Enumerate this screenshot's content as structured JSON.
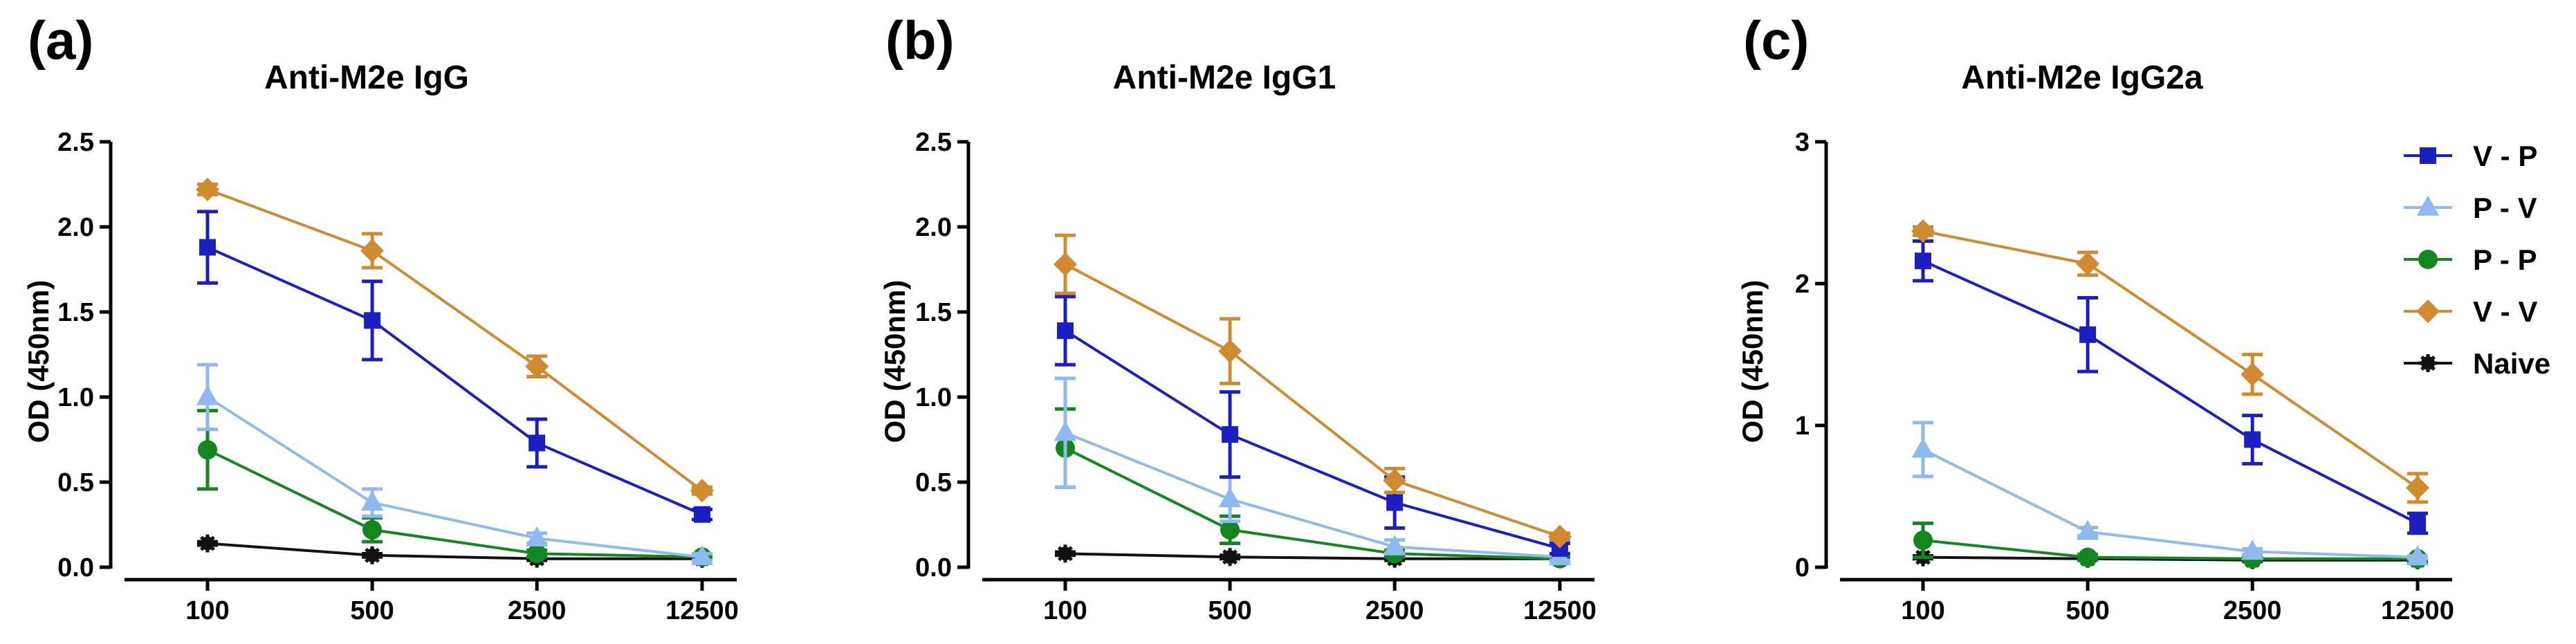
{
  "chart_data": [
    {
      "type": "line",
      "panel": "(a)",
      "title": "Anti-M2e IgG",
      "xlabel": "",
      "ylabel": "OD (450nm)",
      "categories": [
        "100",
        "500",
        "2500",
        "12500"
      ],
      "ylim": [
        0,
        2.5
      ],
      "yticks": [
        0.0,
        0.5,
        1.0,
        1.5,
        2.0,
        2.5
      ],
      "ytick_labels": [
        "0.0",
        "0.5",
        "1.0",
        "1.5",
        "2.0",
        "2.5"
      ],
      "series": [
        {
          "name": "V - P",
          "values": [
            1.88,
            1.45,
            0.73,
            0.31
          ],
          "errors": [
            0.21,
            0.23,
            0.14,
            0.03
          ]
        },
        {
          "name": "P - V",
          "values": [
            1.0,
            0.38,
            0.17,
            0.06
          ],
          "errors": [
            0.19,
            0.08,
            0.03,
            0.02
          ]
        },
        {
          "name": "P - P",
          "values": [
            0.69,
            0.22,
            0.08,
            0.06
          ],
          "errors": [
            0.23,
            0.07,
            0.02,
            0.01
          ]
        },
        {
          "name": "V - V",
          "values": [
            2.22,
            1.86,
            1.18,
            0.45
          ],
          "errors": [
            0.03,
            0.1,
            0.06,
            0.02
          ]
        },
        {
          "name": "Naive",
          "values": [
            0.14,
            0.07,
            0.05,
            0.05
          ],
          "errors": [
            0.01,
            0.01,
            0.01,
            0.01
          ]
        }
      ]
    },
    {
      "type": "line",
      "panel": "(b)",
      "title": "Anti-M2e IgG1",
      "xlabel": "",
      "ylabel": "OD (450nm)",
      "categories": [
        "100",
        "500",
        "2500",
        "12500"
      ],
      "ylim": [
        0,
        2.5
      ],
      "yticks": [
        0.0,
        0.5,
        1.0,
        1.5,
        2.0,
        2.5
      ],
      "ytick_labels": [
        "0.0",
        "0.5",
        "1.0",
        "1.5",
        "2.0",
        "2.5"
      ],
      "series": [
        {
          "name": "V - P",
          "values": [
            1.39,
            0.78,
            0.38,
            0.11
          ],
          "errors": [
            0.2,
            0.25,
            0.15,
            0.03
          ]
        },
        {
          "name": "P - V",
          "values": [
            0.79,
            0.4,
            0.12,
            0.06
          ],
          "errors": [
            0.32,
            0.13,
            0.04,
            0.02
          ]
        },
        {
          "name": "P - P",
          "values": [
            0.7,
            0.22,
            0.08,
            0.05
          ],
          "errors": [
            0.23,
            0.08,
            0.02,
            0.01
          ]
        },
        {
          "name": "V - V",
          "values": [
            1.78,
            1.27,
            0.51,
            0.18
          ],
          "errors": [
            0.17,
            0.19,
            0.07,
            0.02
          ]
        },
        {
          "name": "Naive",
          "values": [
            0.08,
            0.06,
            0.05,
            0.05
          ],
          "errors": [
            0.01,
            0.01,
            0.01,
            0.01
          ]
        }
      ]
    },
    {
      "type": "line",
      "panel": "(c)",
      "title": "Anti-M2e IgG2a",
      "xlabel": "",
      "ylabel": "OD (450nm)",
      "categories": [
        "100",
        "500",
        "2500",
        "12500"
      ],
      "ylim": [
        0,
        3
      ],
      "yticks": [
        0,
        1,
        2,
        3
      ],
      "ytick_labels": [
        "0",
        "1",
        "2",
        "3"
      ],
      "series": [
        {
          "name": "V - P",
          "values": [
            2.16,
            1.64,
            0.9,
            0.31
          ],
          "errors": [
            0.14,
            0.26,
            0.17,
            0.07
          ]
        },
        {
          "name": "P - V",
          "values": [
            0.83,
            0.25,
            0.11,
            0.07
          ],
          "errors": [
            0.19,
            0.03,
            0.02,
            0.01
          ]
        },
        {
          "name": "P - P",
          "values": [
            0.19,
            0.07,
            0.06,
            0.06
          ],
          "errors": [
            0.12,
            0.02,
            0.01,
            0.01
          ]
        },
        {
          "name": "V - V",
          "values": [
            2.37,
            2.14,
            1.36,
            0.56
          ],
          "errors": [
            0.03,
            0.08,
            0.14,
            0.1
          ]
        },
        {
          "name": "Naive",
          "values": [
            0.07,
            0.06,
            0.05,
            0.05
          ],
          "errors": [
            0.01,
            0.01,
            0.01,
            0.01
          ]
        }
      ]
    }
  ],
  "legend": {
    "placement": "right",
    "entries": [
      {
        "name": "V - P",
        "color": "#1b1fbf",
        "marker": "square"
      },
      {
        "name": "P - V",
        "color": "#8fbaf0",
        "marker": "triangle"
      },
      {
        "name": "P - P",
        "color": "#13861f",
        "marker": "circle"
      },
      {
        "name": "V - V",
        "color": "#d08a30",
        "marker": "diamond"
      },
      {
        "name": "Naive",
        "color": "#111111",
        "marker": "star"
      }
    ]
  },
  "series_styles": {
    "V - P": {
      "color": "#1b1fbf",
      "marker": "square"
    },
    "P - V": {
      "color": "#8fbaf0",
      "marker": "triangle"
    },
    "P - P": {
      "color": "#13861f",
      "marker": "circle"
    },
    "V - V": {
      "color": "#d08a30",
      "marker": "diamond"
    },
    "Naive": {
      "color": "#111111",
      "marker": "star"
    }
  }
}
